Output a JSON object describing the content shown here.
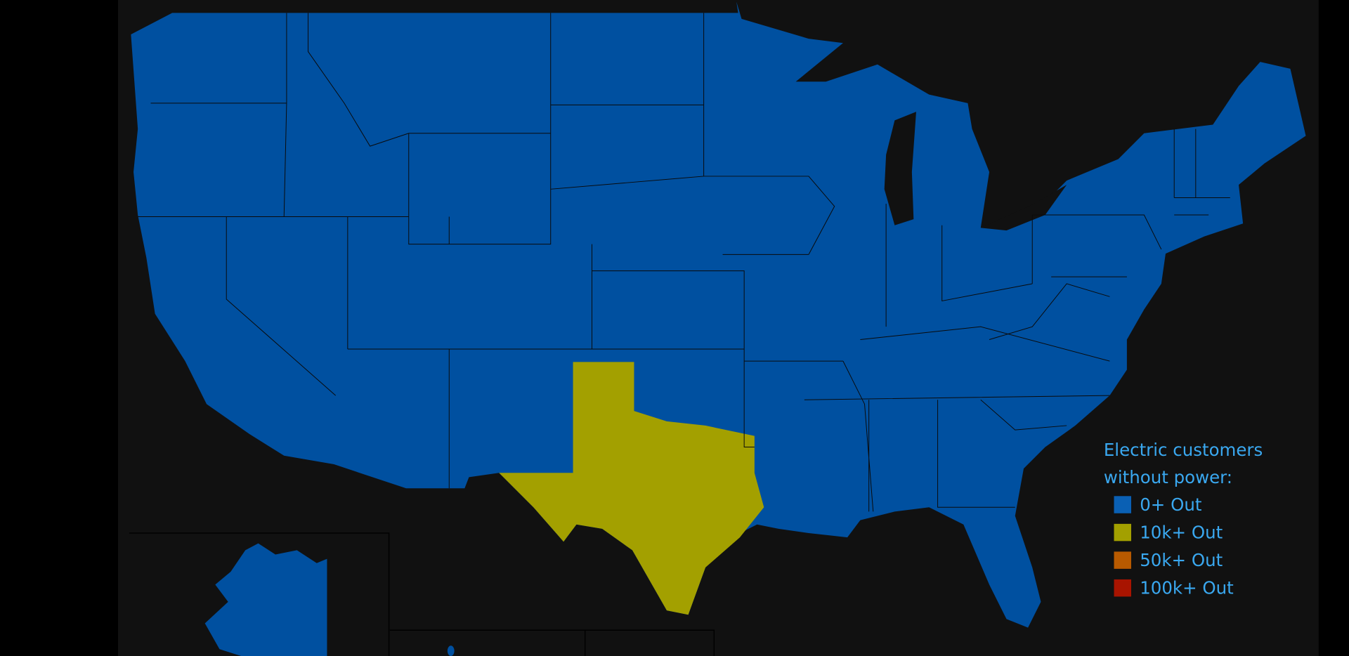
{
  "map": {
    "background_color": "#111111",
    "states_default_color": "#0050a0",
    "highlighted_states": [
      {
        "state": "Texas",
        "category": "10k+ Out",
        "color": "#a3a000"
      }
    ],
    "other_states_category": "0+ Out"
  },
  "legend": {
    "title_line1": "Electric customers",
    "title_line2": "without power:",
    "text_color": "#3aa8f0",
    "items": [
      {
        "label": "0+ Out",
        "color": "#0a60b4"
      },
      {
        "label": "10k+ Out",
        "color": "#a3a000"
      },
      {
        "label": "50k+ Out",
        "color": "#b85a00"
      },
      {
        "label": "100k+ Out",
        "color": "#a81400"
      }
    ]
  }
}
